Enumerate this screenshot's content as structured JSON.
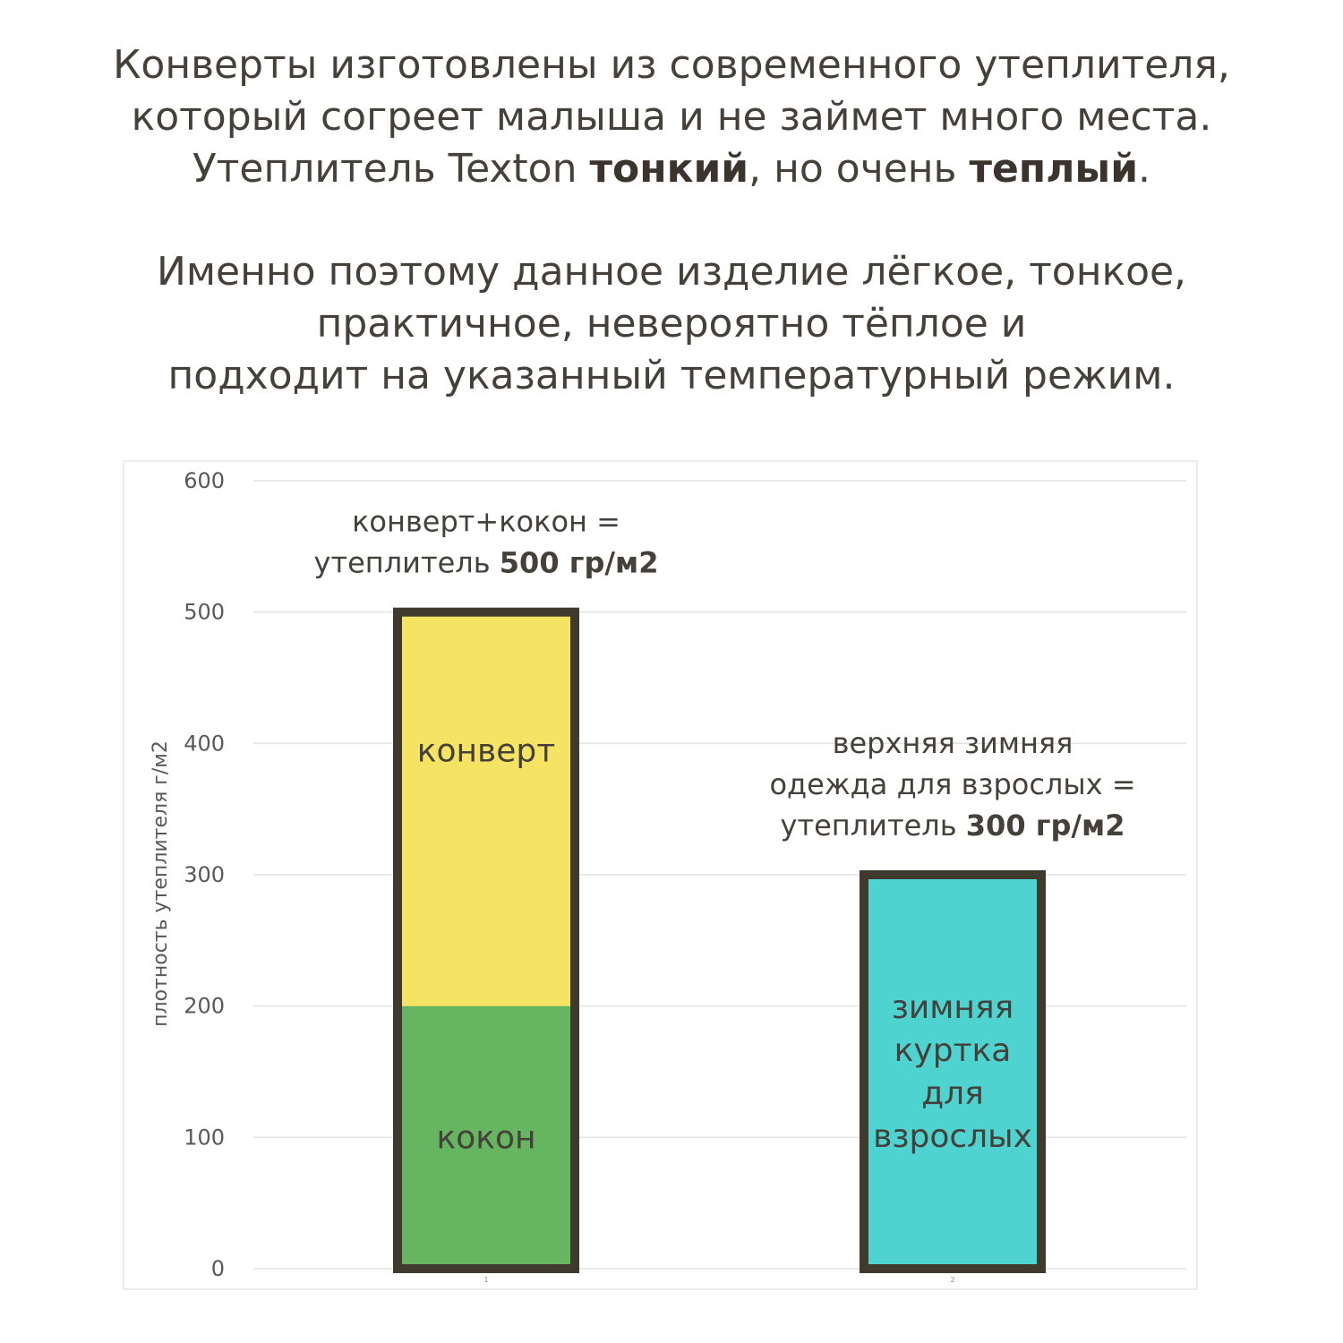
{
  "intro": {
    "paragraph1": [
      [
        {
          "text": "Конверты изготовлены из современного утеплителя,",
          "bold": false
        }
      ],
      [
        {
          "text": "который согреет малыша и не займет много места.",
          "bold": false
        }
      ],
      [
        {
          "text": "Утеплитель Texton ",
          "bold": false
        },
        {
          "text": "тонкий",
          "bold": true
        },
        {
          "text": ", но очень ",
          "bold": false
        },
        {
          "text": "теплый",
          "bold": true
        },
        {
          "text": ".",
          "bold": false
        }
      ]
    ],
    "paragraph2": [
      [
        {
          "text": "Именно поэтому данное изделие лёгкое, тонкое,",
          "bold": false
        }
      ],
      [
        {
          "text": "практичное, невероятно тёплое и",
          "bold": false
        }
      ],
      [
        {
          "text": "подходит на указанный температурный режим.",
          "bold": false
        }
      ]
    ]
  },
  "chart_data": {
    "type": "bar",
    "stacked": true,
    "categories": [
      "1",
      "2"
    ],
    "ylabel": "плотность утеплителя г/м2",
    "xlabel": "",
    "ylim": [
      0,
      600
    ],
    "yticks": [
      0,
      100,
      200,
      300,
      400,
      500,
      600
    ],
    "grid": true,
    "bars": [
      {
        "category": "1",
        "segments": [
          {
            "label": "кокон",
            "value": 200,
            "color": "#66b561"
          },
          {
            "label": "конверт",
            "value": 300,
            "color": "#f5e463"
          }
        ],
        "annotation": [
          [
            {
              "text": "конверт+кокон =",
              "bold": false
            }
          ],
          [
            {
              "text": "утеплитель ",
              "bold": false
            },
            {
              "text": "500 гр/м2",
              "bold": true
            }
          ]
        ]
      },
      {
        "category": "2",
        "segments": [
          {
            "label": "зимняя куртка для взрослых",
            "label_lines": [
              "зимняя",
              "куртка",
              "для",
              "взрослых"
            ],
            "value": 300,
            "color": "#4fd3d1"
          }
        ],
        "annotation": [
          [
            {
              "text": "верхняя зимняя",
              "bold": false
            }
          ],
          [
            {
              "text": "одежда для взрослых =",
              "bold": false
            }
          ],
          [
            {
              "text": "утеплитель ",
              "bold": false
            },
            {
              "text": "300 гр/м2",
              "bold": true
            }
          ]
        ]
      }
    ],
    "bar_outline_color": "#3f3a2d",
    "grid_color": "#e2e2e2",
    "frame_color": "#e6e6e6"
  }
}
